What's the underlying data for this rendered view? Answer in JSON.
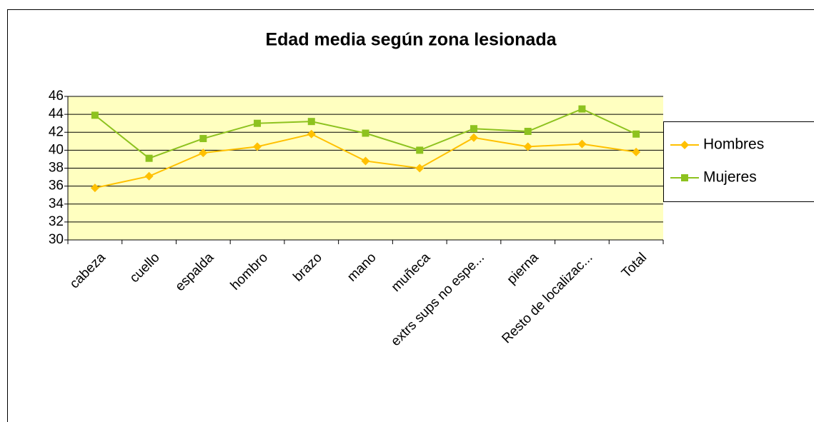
{
  "chart_data": {
    "type": "line",
    "title": "Edad media según zona lesionada",
    "categories": [
      "cabeza",
      "cuello",
      "espalda",
      "hombro",
      "brazo",
      "mano",
      "muñeca",
      "extrs sups no espe...",
      "pierna",
      "Resto de localizac...",
      "Total"
    ],
    "series": [
      {
        "name": "Hombres",
        "color": "#ffc000",
        "values": [
          35.8,
          37.1,
          39.7,
          40.4,
          41.8,
          38.8,
          38.0,
          41.4,
          40.4,
          40.7,
          39.8
        ]
      },
      {
        "name": "Mujeres",
        "color": "#8dc21f",
        "values": [
          43.9,
          39.1,
          41.3,
          43.0,
          43.2,
          41.9,
          40.0,
          42.4,
          42.1,
          44.6,
          41.8
        ]
      }
    ],
    "ylim": [
      30,
      46
    ],
    "yticks": [
      30,
      32,
      34,
      36,
      38,
      40,
      42,
      44,
      46
    ],
    "grid": true,
    "legend": "right"
  }
}
